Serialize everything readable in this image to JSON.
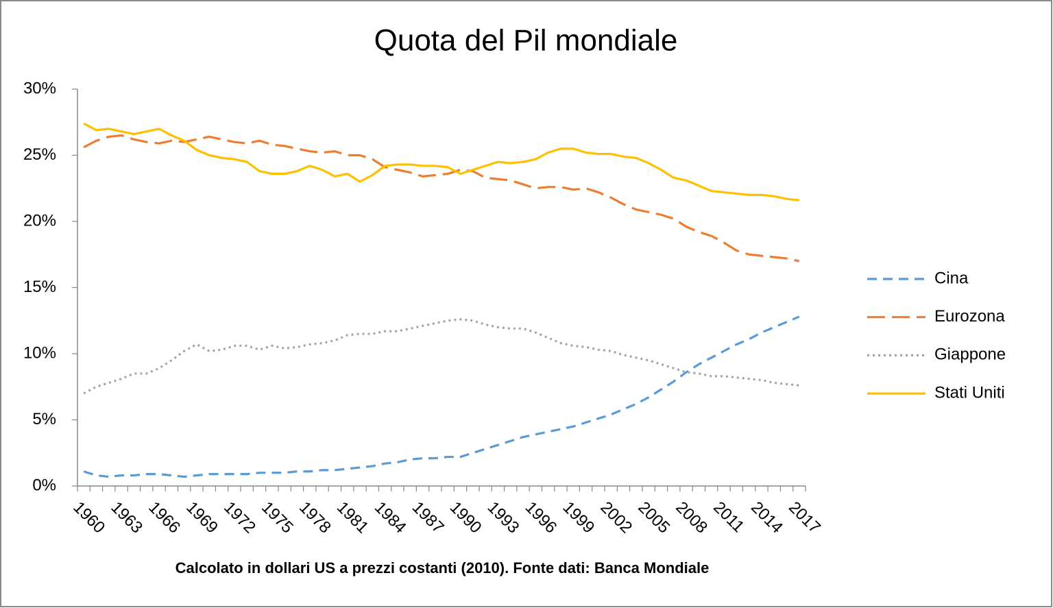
{
  "chart_data": {
    "type": "line",
    "title": "Quota del Pil mondiale",
    "subtitle": "Calcolato in dollari US a prezzi costanti (2010). Fonte dati: Banca Mondiale",
    "categories": [
      "1960",
      null,
      null,
      "1963",
      null,
      null,
      "1966",
      null,
      null,
      "1969",
      null,
      null,
      "1972",
      null,
      null,
      "1975",
      null,
      null,
      "1978",
      null,
      null,
      "1981",
      null,
      null,
      "1984",
      null,
      null,
      "1987",
      null,
      null,
      "1990",
      null,
      null,
      "1993",
      null,
      null,
      "1996",
      null,
      null,
      "1999",
      null,
      null,
      "2002",
      null,
      null,
      "2005",
      null,
      null,
      "2008",
      null,
      null,
      "2011",
      null,
      null,
      "2014",
      null,
      null,
      "2017"
    ],
    "series": [
      {
        "name": "Cina",
        "color": "#5b9bd5",
        "dash": "dashed",
        "values": [
          1.1,
          0.8,
          0.7,
          0.8,
          0.8,
          0.9,
          0.9,
          0.8,
          0.7,
          0.8,
          0.9,
          0.9,
          0.9,
          0.9,
          1.0,
          1.0,
          1.0,
          1.1,
          1.1,
          1.2,
          1.2,
          1.3,
          1.4,
          1.5,
          1.7,
          1.8,
          2.0,
          2.1,
          2.1,
          2.2,
          2.2,
          2.5,
          2.8,
          3.1,
          3.4,
          3.7,
          3.9,
          4.1,
          4.3,
          4.5,
          4.8,
          5.1,
          5.4,
          5.8,
          6.2,
          6.7,
          7.3,
          7.9,
          8.6,
          9.2,
          9.7,
          10.2,
          10.7,
          11.1,
          11.6,
          12.0,
          12.4,
          12.8
        ]
      },
      {
        "name": "Eurozona",
        "color": "#ed7d31",
        "dash": "long-dashed",
        "values": [
          25.6,
          26.1,
          26.4,
          26.5,
          26.2,
          26.0,
          25.9,
          26.1,
          26.0,
          26.2,
          26.4,
          26.2,
          26.0,
          25.9,
          26.1,
          25.8,
          25.7,
          25.5,
          25.3,
          25.2,
          25.3,
          25.0,
          25.0,
          24.7,
          24.1,
          23.9,
          23.7,
          23.4,
          23.5,
          23.6,
          23.9,
          23.8,
          23.3,
          23.2,
          23.1,
          22.8,
          22.5,
          22.6,
          22.6,
          22.4,
          22.5,
          22.2,
          21.8,
          21.3,
          20.9,
          20.7,
          20.5,
          20.2,
          19.6,
          19.2,
          18.9,
          18.4,
          17.8,
          17.5,
          17.4,
          17.3,
          17.2,
          17.0
        ]
      },
      {
        "name": "Giappone",
        "color": "#a5a5a5",
        "dash": "dotted",
        "values": [
          7.0,
          7.5,
          7.8,
          8.1,
          8.5,
          8.5,
          8.9,
          9.5,
          10.2,
          10.7,
          10.2,
          10.3,
          10.6,
          10.6,
          10.3,
          10.6,
          10.4,
          10.5,
          10.7,
          10.8,
          11.0,
          11.4,
          11.5,
          11.5,
          11.7,
          11.7,
          11.9,
          12.1,
          12.3,
          12.5,
          12.6,
          12.5,
          12.2,
          12.0,
          11.9,
          11.9,
          11.6,
          11.2,
          10.8,
          10.6,
          10.5,
          10.3,
          10.2,
          9.9,
          9.7,
          9.5,
          9.2,
          8.9,
          8.6,
          8.5,
          8.3,
          8.3,
          8.2,
          8.1,
          8.0,
          7.8,
          7.7,
          7.6
        ]
      },
      {
        "name": "Stati Uniti",
        "color": "#ffc000",
        "dash": "solid",
        "values": [
          27.4,
          26.9,
          27.0,
          26.8,
          26.6,
          26.8,
          27.0,
          26.5,
          26.1,
          25.4,
          25.0,
          24.8,
          24.7,
          24.5,
          23.8,
          23.6,
          23.6,
          23.8,
          24.2,
          23.9,
          23.4,
          23.6,
          23.0,
          23.5,
          24.2,
          24.3,
          24.3,
          24.2,
          24.2,
          24.1,
          23.6,
          23.9,
          24.2,
          24.5,
          24.4,
          24.5,
          24.7,
          25.2,
          25.5,
          25.5,
          25.2,
          25.1,
          25.1,
          24.9,
          24.8,
          24.4,
          23.9,
          23.3,
          23.1,
          22.7,
          22.3,
          22.2,
          22.1,
          22.0,
          22.0,
          21.9,
          21.7,
          21.6
        ]
      }
    ],
    "ylim": [
      0,
      30
    ],
    "yticks": [
      {
        "value": 0,
        "label": "0%"
      },
      {
        "value": 5,
        "label": "5%"
      },
      {
        "value": 10,
        "label": "10%"
      },
      {
        "value": 15,
        "label": "15%"
      },
      {
        "value": 20,
        "label": "20%"
      },
      {
        "value": 25,
        "label": "25%"
      },
      {
        "value": 30,
        "label": "30%"
      }
    ],
    "grid": false,
    "legend": "right"
  }
}
